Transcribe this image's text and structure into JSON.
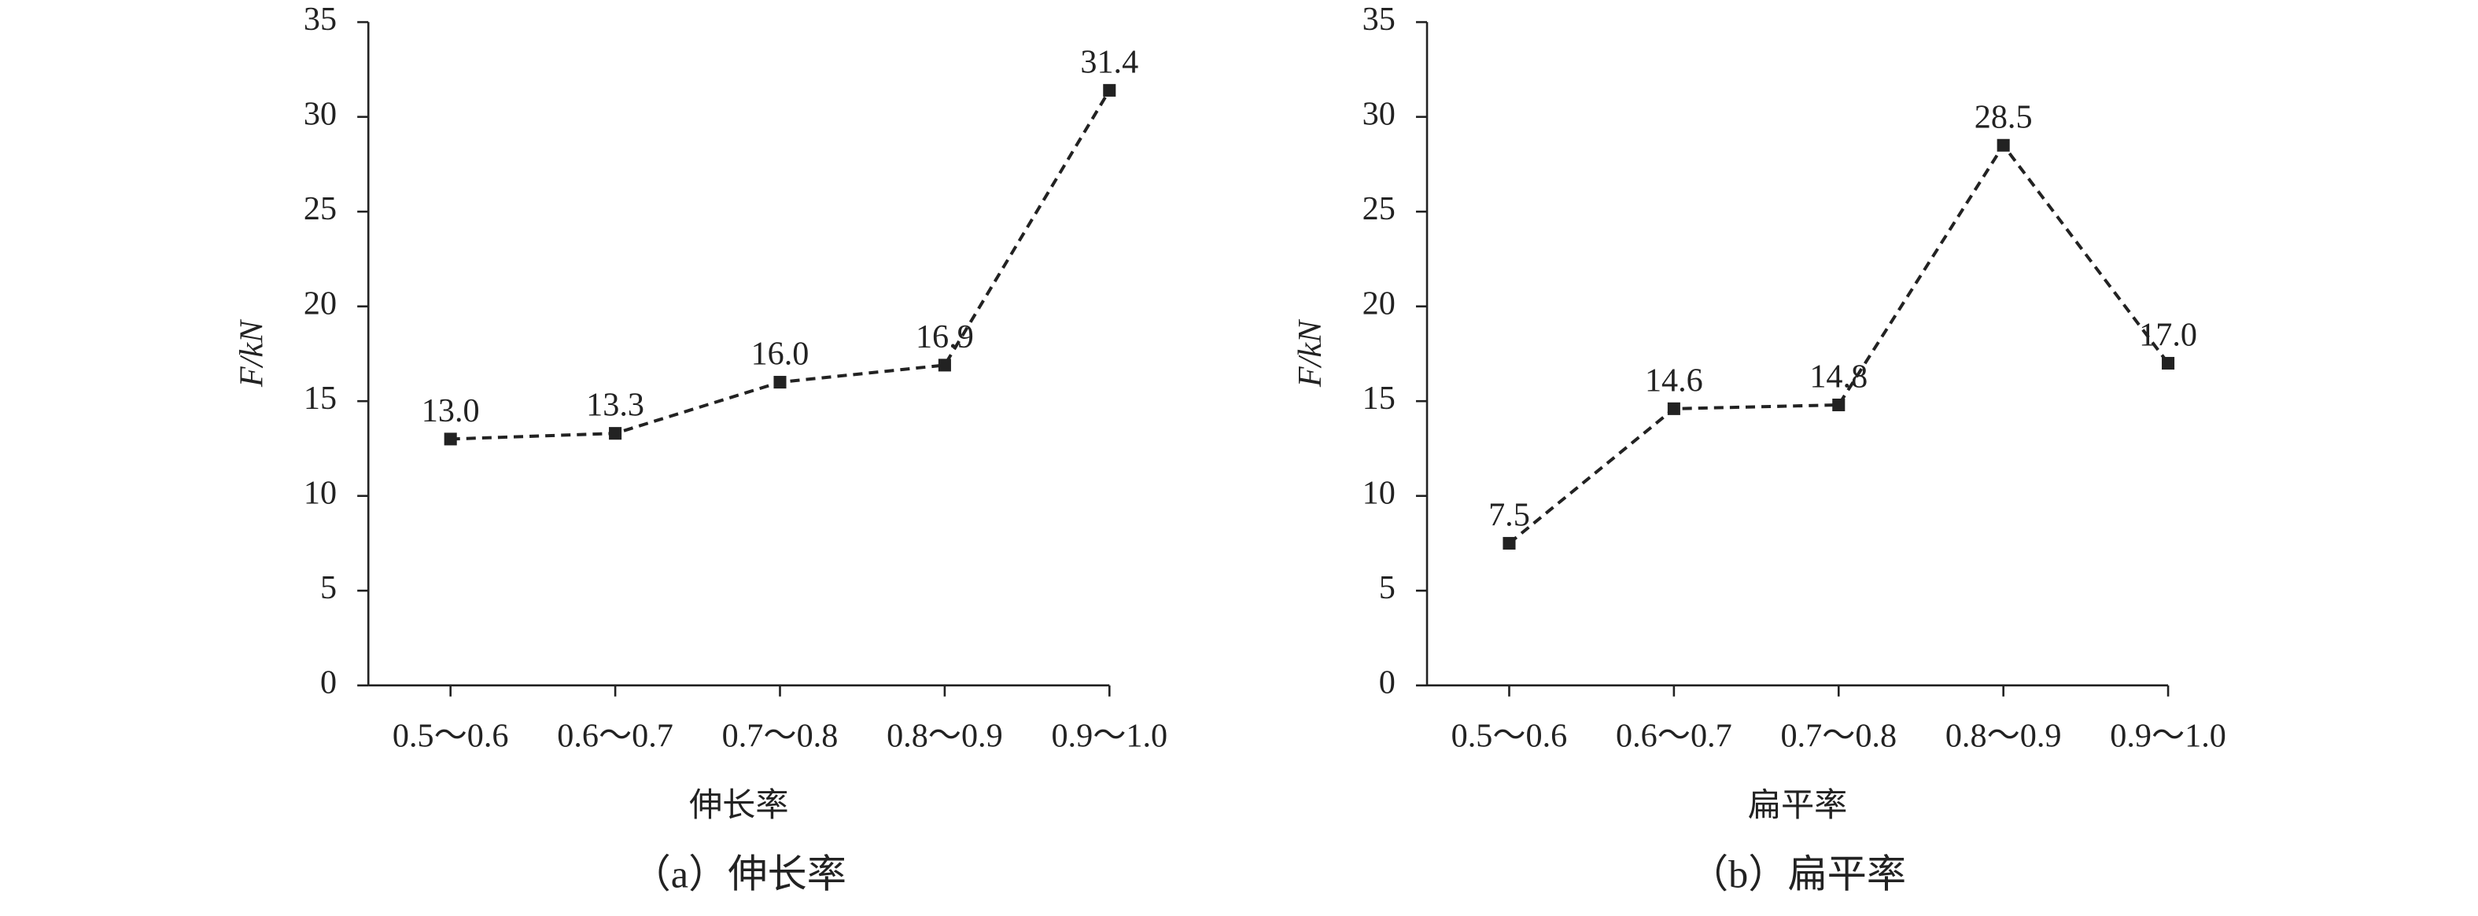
{
  "chart_data": [
    {
      "type": "line",
      "categories": [
        "0.5～0.6",
        "0.6～0.7",
        "0.7～0.8",
        "0.8～0.9",
        "0.9～1.0"
      ],
      "values": [
        13.0,
        13.3,
        16.0,
        16.9,
        31.4
      ],
      "value_labels": [
        "13.0",
        "13.3",
        "16.0",
        "16.9",
        "31.4"
      ],
      "color": "#222222",
      "ylim": [
        0,
        35
      ],
      "yticks": [
        0,
        5,
        10,
        15,
        20,
        25,
        30,
        35
      ],
      "ylabel": "F/kN",
      "xlabel": "伸长率",
      "caption": "（a）伸长率"
    },
    {
      "type": "line",
      "categories": [
        "0.5～0.6",
        "0.6～0.7",
        "0.7～0.8",
        "0.8～0.9",
        "0.9～1.0"
      ],
      "values": [
        7.5,
        14.6,
        14.8,
        28.5,
        17.0
      ],
      "value_labels": [
        "7.5",
        "14.6",
        "14.8",
        "28.5",
        "17.0"
      ],
      "color": "#222222",
      "ylim": [
        0,
        35
      ],
      "yticks": [
        0,
        5,
        10,
        15,
        20,
        25,
        30,
        35
      ],
      "ylabel": "F/kN",
      "xlabel": "扁平率",
      "caption": "（b）扁平率"
    }
  ]
}
